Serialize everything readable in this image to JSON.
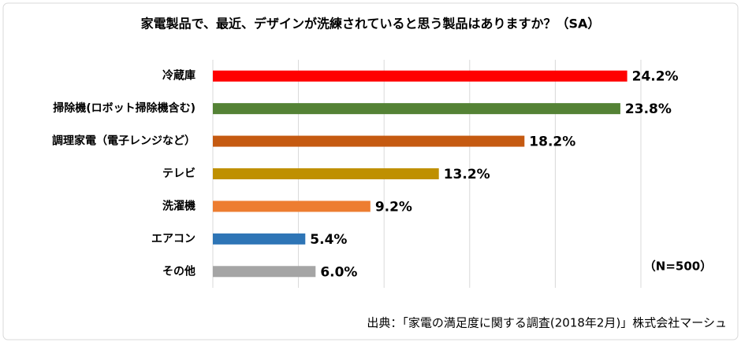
{
  "chart_data": {
    "type": "bar",
    "orientation": "horizontal",
    "title": "家電製品で、最近、デザインが洗練されていると思う製品はありますか？（SA）",
    "categories": [
      "冷蔵庫",
      "掃除機(ロボット掃除機含む)",
      "調理家電（電子レンジなど）",
      "テレビ",
      "洗濯機",
      "エアコン",
      "その他"
    ],
    "values": [
      24.2,
      23.8,
      18.2,
      13.2,
      9.2,
      5.4,
      6.0
    ],
    "value_labels": [
      "24.2%",
      "23.8%",
      "18.2%",
      "13.2%",
      "9.2%",
      "5.4%",
      "6.0%"
    ],
    "colors": [
      "#ff0000",
      "#548235",
      "#c55a11",
      "#bf9000",
      "#ed7d31",
      "#2e75b6",
      "#a5a5a5"
    ],
    "xlim": [
      0,
      25
    ],
    "xticks": [
      0,
      5,
      10,
      15,
      20,
      25
    ],
    "grid": true,
    "annotation": "（N=500）",
    "source": "出典：「家電の満足度に関する調査(2018年2月)」株式会社マーシュ"
  }
}
